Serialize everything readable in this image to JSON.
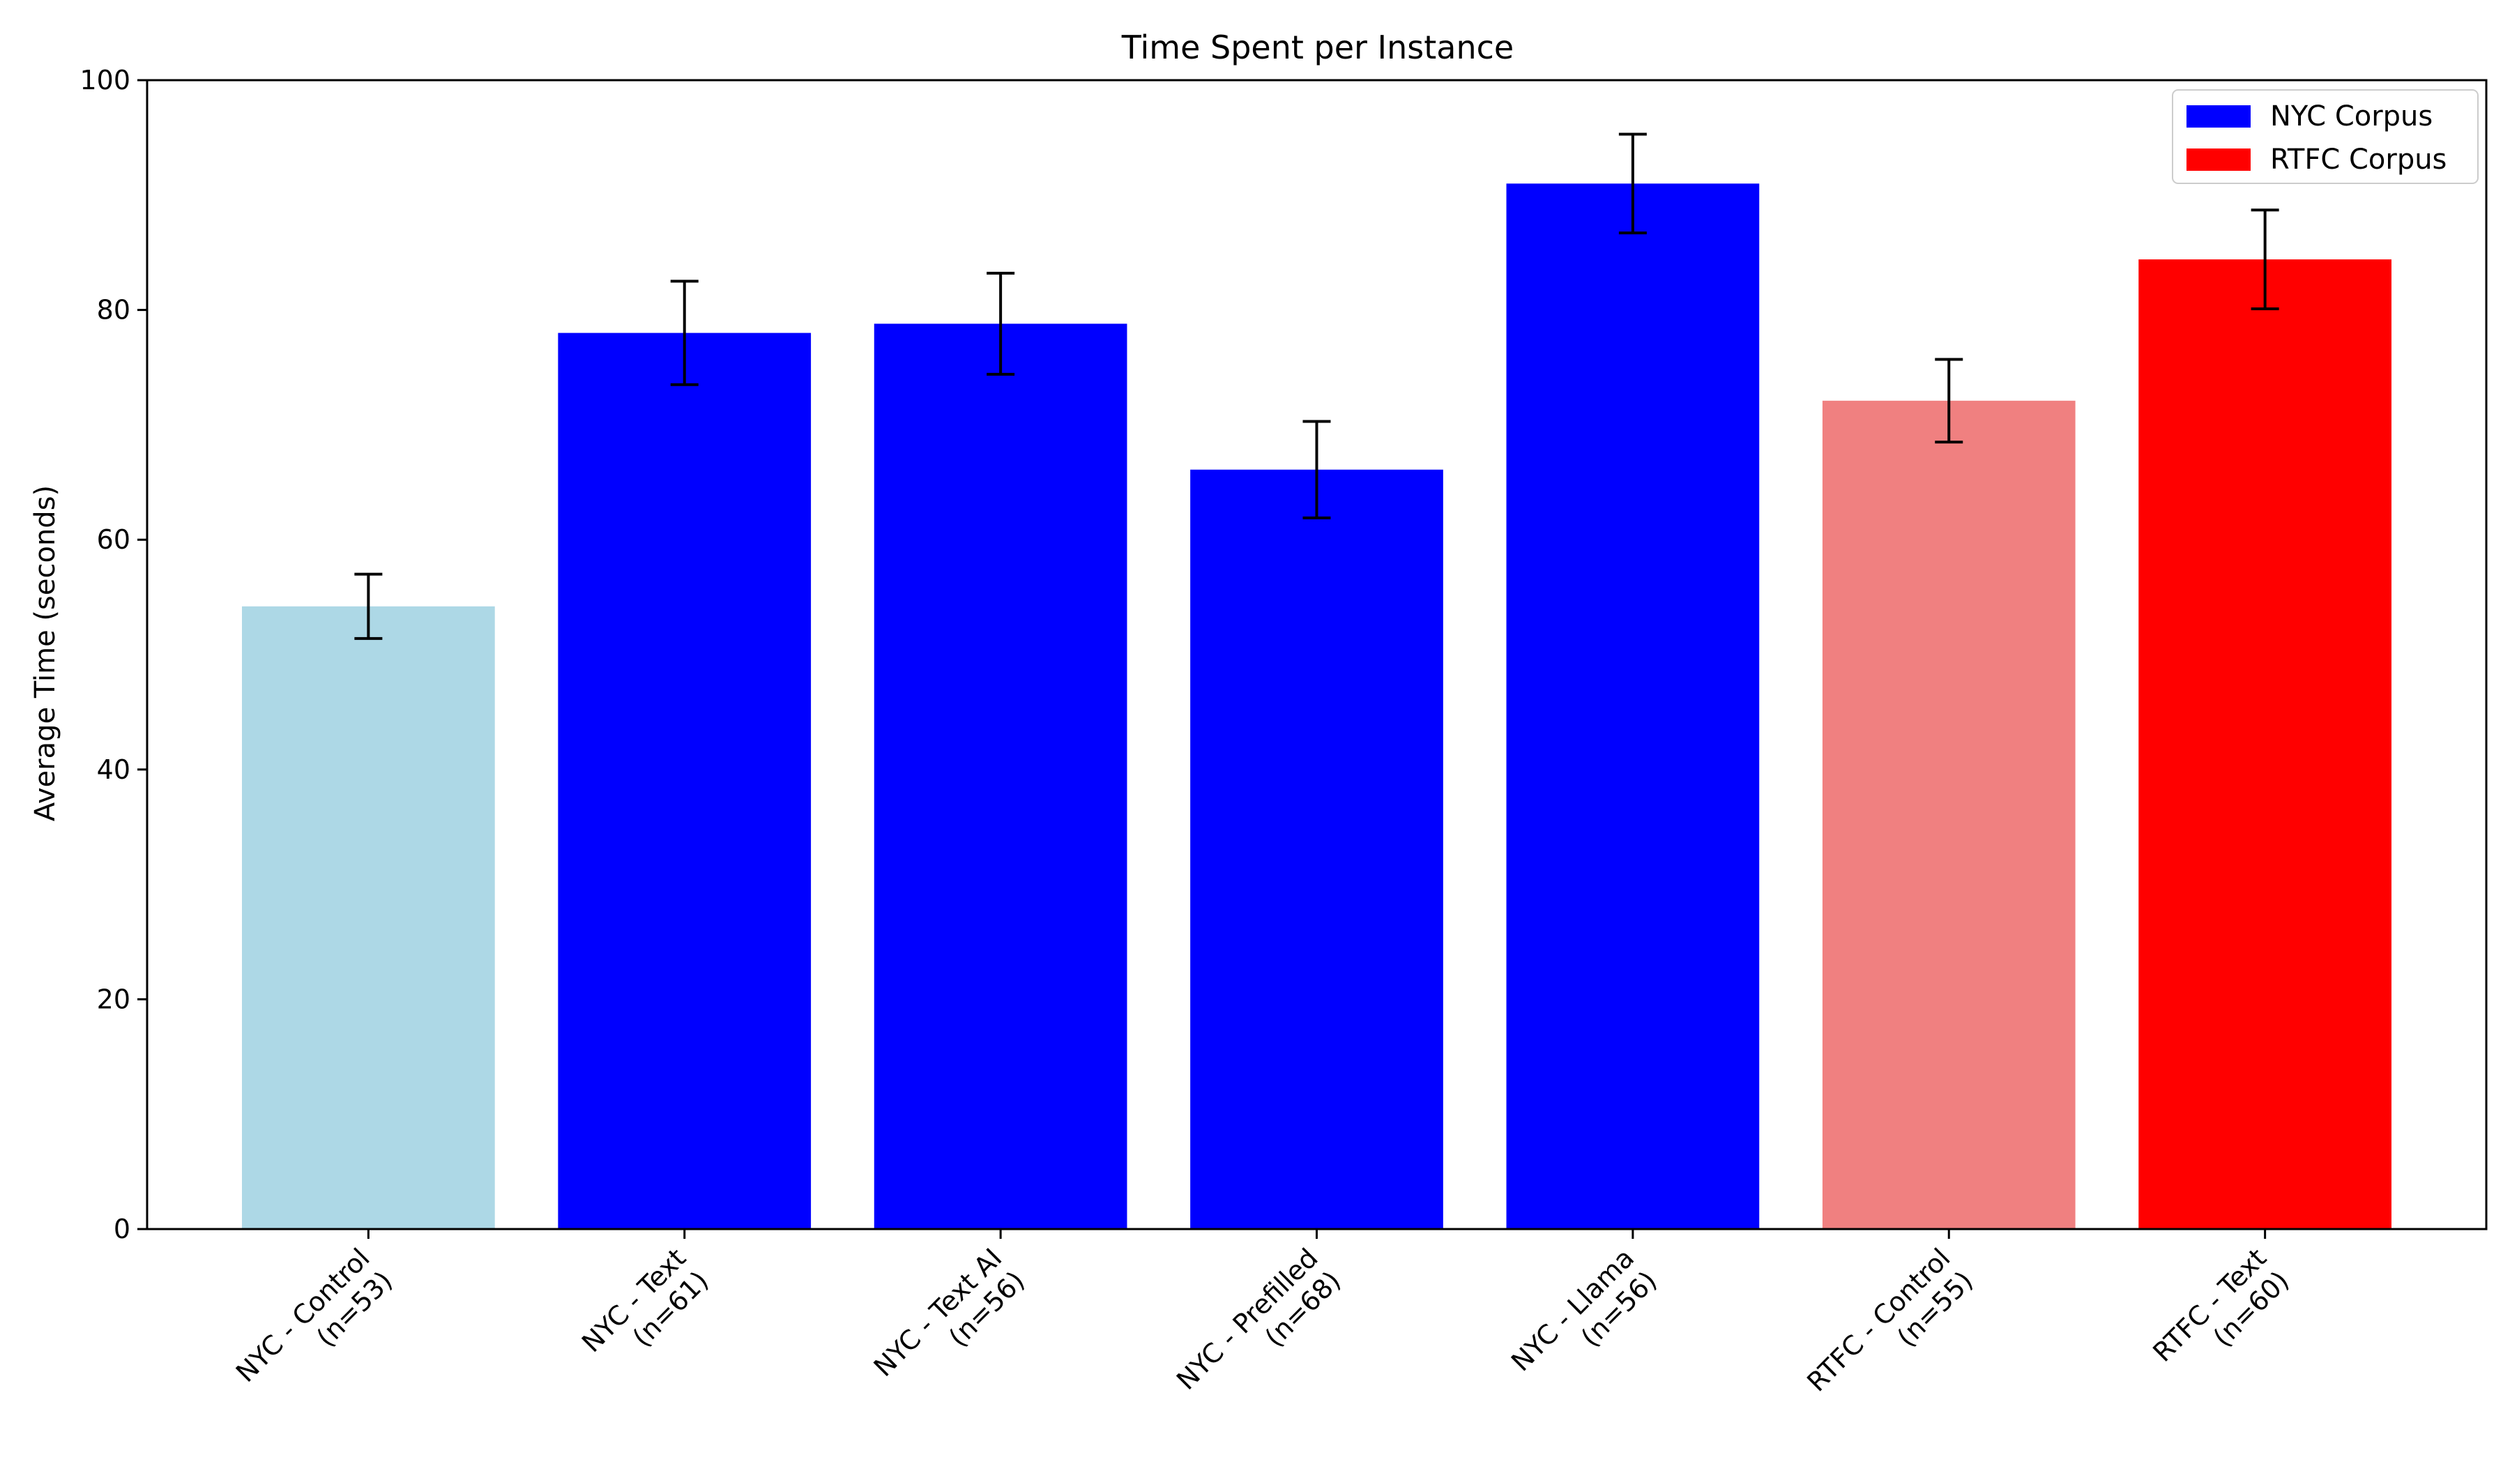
{
  "chart_data": {
    "type": "bar",
    "title": "Time Spent per Instance",
    "xlabel": "",
    "ylabel": "Average Time (seconds)",
    "ylim": [
      0,
      100
    ],
    "yticks": [
      0,
      20,
      40,
      60,
      80,
      100
    ],
    "grid": false,
    "legend_position": "top-right",
    "categories": [
      [
        "NYC - Control",
        "(n=53)"
      ],
      [
        "NYC - Text",
        "(n=61)"
      ],
      [
        "NYC - Text AI",
        "(n=56)"
      ],
      [
        "NYC - Prefilled",
        "(n=68)"
      ],
      [
        "NYC - Llama",
        "(n=56)"
      ],
      [
        "RTFC - Control",
        "(n=55)"
      ],
      [
        "RTFC - Text",
        "(n=60)"
      ]
    ],
    "values": [
      54.2,
      78.0,
      78.8,
      66.1,
      91.0,
      72.1,
      84.4
    ],
    "errors": [
      2.8,
      4.5,
      4.4,
      4.2,
      4.3,
      3.6,
      4.3
    ],
    "colors": [
      "#add8e6",
      "#0000ff",
      "#0000ff",
      "#0000ff",
      "#0000ff",
      "#f08080",
      "#ff0000"
    ],
    "legend": [
      {
        "label": "NYC Corpus",
        "color": "#0000ff"
      },
      {
        "label": "RTFC Corpus",
        "color": "#ff0000"
      }
    ]
  }
}
